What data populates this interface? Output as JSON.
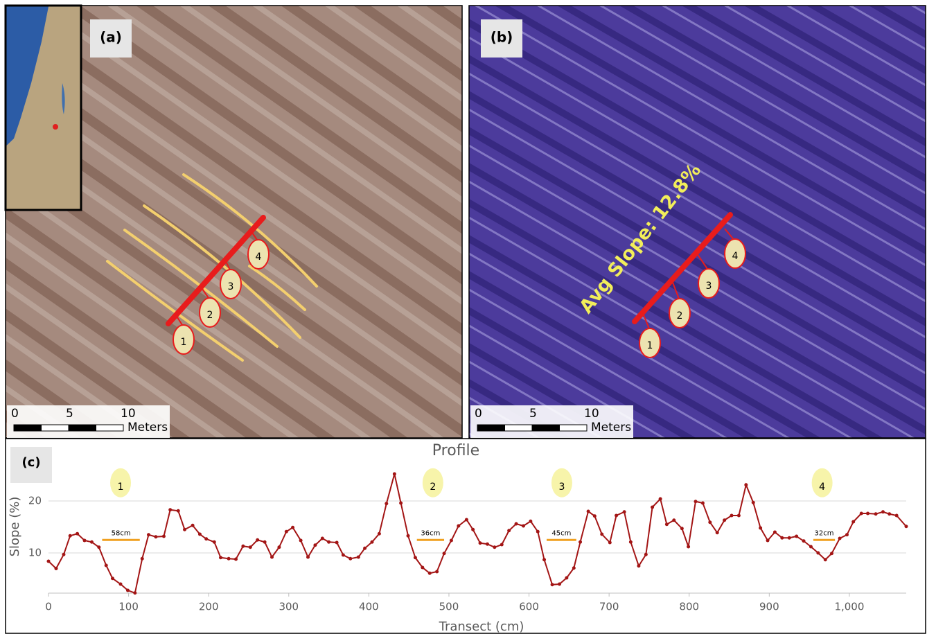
{
  "panels": {
    "a": {
      "label": "(a)",
      "scale_ticks": [
        0,
        5,
        10
      ],
      "scale_unit": "Meters",
      "markers": [
        "1",
        "2",
        "3",
        "4"
      ]
    },
    "b": {
      "label": "(b)",
      "annotation": "Avg Slope: 12.8%",
      "scale_ticks": [
        0,
        5,
        10
      ],
      "scale_unit": "Meters",
      "markers": [
        "1",
        "2",
        "3",
        "4"
      ]
    }
  },
  "chart_data": {
    "type": "line",
    "panel_label": "(c)",
    "title": "Profile",
    "x_label": "Transect (cm)",
    "y_label": "Slope (%)",
    "xlim": [
      0,
      1071
    ],
    "ylim": [
      2.27,
      28.4
    ],
    "xticks": [
      0,
      100,
      200,
      300,
      400,
      500,
      600,
      700,
      800,
      900,
      {
        "value": 1000,
        "label": "1,000"
      }
    ],
    "yticks": [
      10,
      20
    ],
    "grid": true,
    "x": [
      0,
      9.5,
      19,
      27,
      36,
      45,
      54,
      63,
      72,
      80,
      90,
      99,
      108,
      117,
      125,
      134,
      144,
      152,
      162,
      170,
      180,
      189,
      197,
      207,
      215,
      225,
      234,
      243,
      252,
      261,
      270,
      279,
      288,
      297,
      305,
      315,
      324,
      333,
      342,
      350,
      360,
      368,
      377,
      387,
      395,
      404,
      413,
      422,
      432,
      440,
      449,
      458,
      467,
      476,
      485,
      494,
      503,
      512,
      522,
      530,
      539,
      548,
      557,
      566,
      575,
      584,
      593,
      602,
      611,
      619,
      629,
      638,
      647,
      656,
      664,
      674,
      682,
      691,
      701,
      709,
      719,
      727,
      737,
      746,
      754,
      764,
      772,
      781,
      791,
      799,
      808,
      817,
      826,
      835,
      844,
      853,
      862,
      871,
      880,
      889,
      898,
      907,
      916,
      925,
      934,
      943,
      952,
      961,
      970,
      978,
      988,
      997,
      1005,
      1015,
      1023,
      1033,
      1042,
      1050,
      1059,
      1071
    ],
    "series": [
      {
        "color": "#a31515",
        "values": [
          8.4,
          7.0,
          9.7,
          13.3,
          13.7,
          12.4,
          12.1,
          11.1,
          7.6,
          5.1,
          4.0,
          2.8,
          2.3,
          8.9,
          13.5,
          13.1,
          13.2,
          18.3,
          18.1,
          14.5,
          15.3,
          13.6,
          12.7,
          12.1,
          9.1,
          8.9,
          8.8,
          11.3,
          11.1,
          12.5,
          12.1,
          9.2,
          11.1,
          14.1,
          14.9,
          12.4,
          9.2,
          11.5,
          12.8,
          12.1,
          12.0,
          9.6,
          8.9,
          9.2,
          10.9,
          12.1,
          13.7,
          19.5,
          25.2,
          19.6,
          13.3,
          9.1,
          7.2,
          6.1,
          6.4,
          9.9,
          12.4,
          15.2,
          16.4,
          14.5,
          11.9,
          11.7,
          11.1,
          11.6,
          14.3,
          15.6,
          15.2,
          16.1,
          14.1,
          8.7,
          3.9,
          4.0,
          5.2,
          7.1,
          12.1,
          18.0,
          17.1,
          13.6,
          12.0,
          17.2,
          17.9,
          12.1,
          7.5,
          9.7,
          18.8,
          20.4,
          15.5,
          16.3,
          14.7,
          11.2,
          19.9,
          19.6,
          15.9,
          13.9,
          16.3,
          17.2,
          17.2,
          23.1,
          19.7,
          14.8,
          12.4,
          14.0,
          12.9,
          12.9,
          13.2,
          12.3,
          11.2,
          10.0,
          8.7,
          9.9,
          12.8,
          13.5,
          16.0,
          17.6,
          17.6,
          17.5,
          17.9,
          17.5,
          17.2,
          15.1
        ]
      }
    ],
    "markers": [
      {
        "label": "1",
        "x": 90,
        "y": 23.5
      },
      {
        "label": "2",
        "x": 480,
        "y": 23.5
      },
      {
        "label": "3",
        "x": 641,
        "y": 23.5
      },
      {
        "label": "4",
        "x": 966,
        "y": 23.5
      }
    ],
    "widths": [
      {
        "label": "58cm",
        "x": [
          67,
          114
        ],
        "y": 12.5
      },
      {
        "label": "36cm",
        "x": [
          460,
          494
        ],
        "y": 12.5
      },
      {
        "label": "45cm",
        "x": [
          622,
          659
        ],
        "y": 12.5
      },
      {
        "label": "32cm",
        "x": [
          955,
          982
        ],
        "y": 12.5
      }
    ]
  }
}
